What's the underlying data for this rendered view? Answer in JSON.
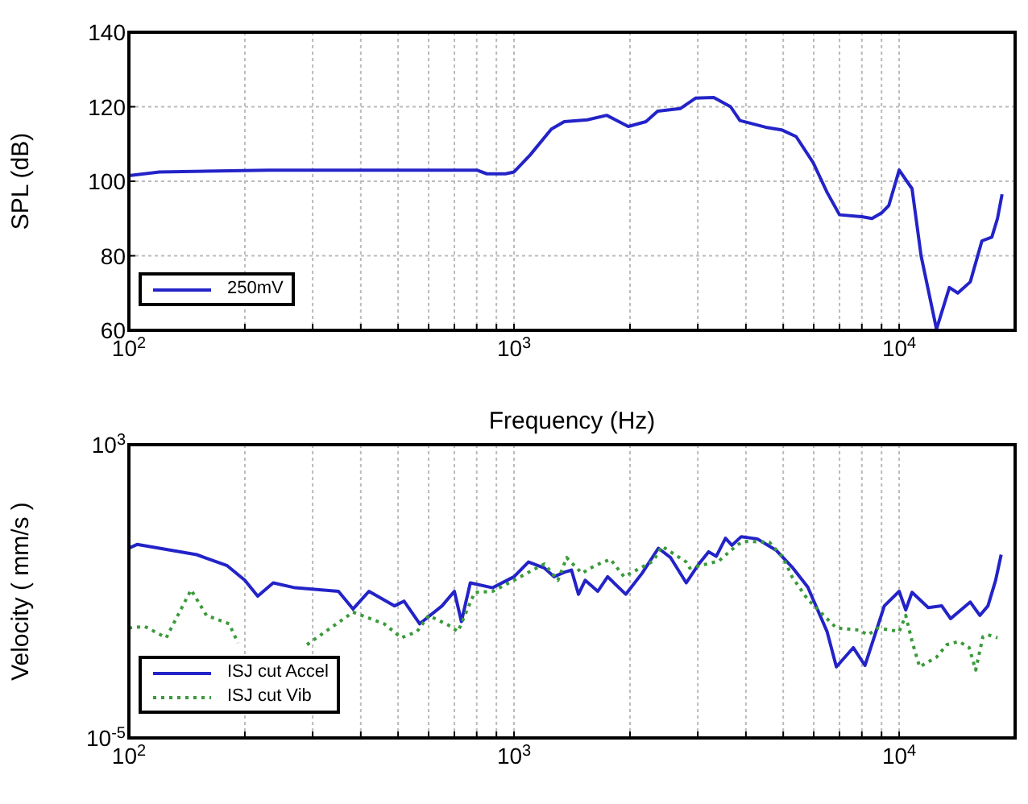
{
  "chart_data": [
    {
      "type": "line",
      "xlabel": "Frequency (Hz)",
      "ylabel": "SPL (dB)",
      "log": "x",
      "xlim": [
        100,
        20000
      ],
      "ylim": [
        60,
        140
      ],
      "yticks": [
        60,
        80,
        100,
        120,
        140
      ],
      "xticks": [
        {
          "value": 100,
          "label": "10$^{2}$"
        },
        {
          "value": 200,
          "label": null
        },
        {
          "value": 300,
          "label": null
        },
        {
          "value": 400,
          "label": null
        },
        {
          "value": 500,
          "label": null
        },
        {
          "value": 600,
          "label": null
        },
        {
          "value": 700,
          "label": null
        },
        {
          "value": 800,
          "label": null
        },
        {
          "value": 900,
          "label": null
        },
        {
          "value": 1000,
          "label": "10$^{3}$"
        },
        {
          "value": 2000,
          "label": null
        },
        {
          "value": 3000,
          "label": null
        },
        {
          "value": 4000,
          "label": null
        },
        {
          "value": 5000,
          "label": null
        },
        {
          "value": 6000,
          "label": null
        },
        {
          "value": 7000,
          "label": null
        },
        {
          "value": 8000,
          "label": null
        },
        {
          "value": 9000,
          "label": null
        },
        {
          "value": 10000,
          "label": "10$^{4}$"
        }
      ],
      "grid": true,
      "legend": "bottom left",
      "series": [
        {
          "name": "250mV",
          "color": "#2323c8",
          "line_style": "solid",
          "x": [
            100,
            120,
            230,
            800,
            850,
            950,
            1000,
            1100,
            1250,
            1350,
            1550,
            1740,
            1980,
            2200,
            2360,
            2700,
            2960,
            3300,
            3650,
            3860,
            4500,
            4950,
            5400,
            5980,
            6500,
            7000,
            8000,
            8500,
            9000,
            9400,
            10000,
            10800,
            11400,
            12500,
            13500,
            14200,
            15300,
            16400,
            17400,
            18000,
            18500
          ],
          "values": [
            101.5,
            102.5,
            103,
            103,
            102,
            102,
            102.5,
            107,
            114,
            116,
            116.5,
            117.7,
            114.7,
            116,
            118.8,
            119.5,
            122.3,
            122.5,
            120,
            116.3,
            114.5,
            113.8,
            112,
            105,
            97,
            91,
            90.5,
            90,
            91.5,
            93.5,
            103,
            98,
            80,
            60.3,
            71.5,
            70,
            73,
            84,
            85,
            90,
            96.5
          ]
        }
      ]
    },
    {
      "type": "line",
      "ylabel": "Velocity ( mm/s )",
      "log": "xy",
      "xlim": [
        100,
        20000
      ],
      "ylim": [
        1e-05,
        1000
      ],
      "yticks": [
        {
          "value": 1e-05,
          "label": "10$^{-5}$"
        },
        {
          "value": 1000,
          "label": "10$^{3}$"
        }
      ],
      "xticks": [
        {
          "value": 100,
          "label": "10$^{2}$"
        },
        {
          "value": 200,
          "label": null
        },
        {
          "value": 300,
          "label": null
        },
        {
          "value": 400,
          "label": null
        },
        {
          "value": 500,
          "label": null
        },
        {
          "value": 600,
          "label": null
        },
        {
          "value": 700,
          "label": null
        },
        {
          "value": 800,
          "label": null
        },
        {
          "value": 900,
          "label": null
        },
        {
          "value": 1000,
          "label": "10$^{3}$"
        },
        {
          "value": 2000,
          "label": null
        },
        {
          "value": 3000,
          "label": null
        },
        {
          "value": 4000,
          "label": null
        },
        {
          "value": 5000,
          "label": null
        },
        {
          "value": 6000,
          "label": null
        },
        {
          "value": 7000,
          "label": null
        },
        {
          "value": 8000,
          "label": null
        },
        {
          "value": 9000,
          "label": null
        },
        {
          "value": 10000,
          "label": "10$^{4}$"
        }
      ],
      "grid": "x",
      "legend": "bottom left",
      "series": [
        {
          "name": "ISJ cut Accel",
          "color": "#2323c8",
          "line_style": "solid",
          "x": [
            100,
            105,
            150,
            180,
            200,
            216,
            237,
            270,
            350,
            382,
            420,
            489,
            518,
            569,
            650,
            700,
            730,
            770,
            880,
            1000,
            1090,
            1200,
            1270,
            1350,
            1410,
            1470,
            1530,
            1650,
            1750,
            1950,
            2150,
            2370,
            2550,
            2800,
            3020,
            3200,
            3350,
            3540,
            3680,
            3890,
            4280,
            4800,
            5270,
            5790,
            6500,
            6870,
            7600,
            8150,
            9150,
            10000,
            10400,
            10800,
            11900,
            12900,
            13600,
            15300,
            16200,
            17000,
            17800,
            18400
          ],
          "values": [
            1.5,
            1.9,
            1.0,
            0.5,
            0.2,
            0.074,
            0.17,
            0.125,
            0.1,
            0.033,
            0.1,
            0.04,
            0.054,
            0.013,
            0.04,
            0.1,
            0.015,
            0.17,
            0.125,
            0.25,
            0.63,
            0.43,
            0.25,
            0.33,
            0.38,
            0.083,
            0.2,
            0.1,
            0.25,
            0.083,
            0.31,
            1.5,
            0.83,
            0.17,
            0.56,
            1.2,
            0.9,
            2.8,
            1.8,
            3.1,
            2.7,
            1.3,
            0.46,
            0.13,
            0.0079,
            0.00087,
            0.0029,
            0.00095,
            0.04,
            0.1,
            0.031,
            0.094,
            0.036,
            0.04,
            0.018,
            0.051,
            0.022,
            0.04,
            0.2,
            1.0
          ]
        },
        {
          "name": "ISJ cut Vib",
          "color": "#3a9a3a",
          "line_style": "dotted",
          "x": [
            100,
            110,
            125,
            145,
            159,
            182,
            192,
            200,
            240,
            290,
            382,
            460,
            510,
            560,
            600,
            675,
            715,
            790,
            880,
            1000,
            1090,
            1200,
            1300,
            1370,
            1500,
            1620,
            1780,
            1930,
            2300,
            2420,
            2800,
            2860,
            3400,
            3800,
            3950,
            4600,
            5000,
            5270,
            5790,
            6870,
            7850,
            8300,
            8800,
            10000,
            10400,
            10800,
            11300,
            12500,
            13300,
            14300,
            15200,
            15800,
            16500,
            17000,
            18000
          ],
          "values": [
            0.01,
            0.011,
            0.0054,
            0.11,
            0.022,
            0.013,
            0.0039,
            null,
            null,
            0.0035,
            0.027,
            0.013,
            0.0054,
            0.008,
            0.022,
            0.012,
            0.008,
            0.093,
            0.1,
            0.2,
            0.33,
            0.56,
            0.2,
            0.83,
            0.31,
            0.5,
            0.75,
            0.25,
            0.67,
            1.7,
            0.63,
            0.43,
            0.67,
            1.85,
            2.3,
            2.2,
            0.83,
            0.25,
            0.06,
            0.01,
            0.0088,
            0.0065,
            0.01,
            0.008,
            0.022,
            0.0043,
            0.00087,
            0.0016,
            0.0035,
            0.0043,
            0.0029,
            0.00071,
            0.0058,
            0.0065,
            0.0054
          ]
        }
      ]
    }
  ]
}
